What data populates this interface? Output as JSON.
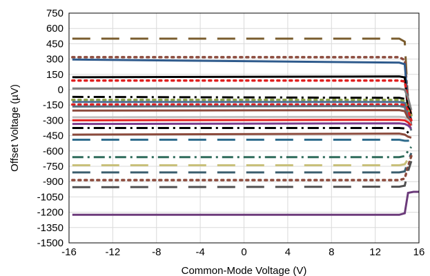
{
  "chart_data": {
    "type": "line",
    "title": "",
    "xlabel": "Common-Mode Voltage (V)",
    "ylabel": "Offset Voltage (µV)",
    "xlim": [
      -16,
      16
    ],
    "ylim": [
      -1500,
      750
    ],
    "x_ticks": [
      -16,
      -12,
      -8,
      -4,
      0,
      4,
      8,
      12,
      16
    ],
    "x_tick_labels": [
      "-16",
      "-12",
      "-8",
      "-4",
      "0",
      "4",
      "8",
      "12",
      "16"
    ],
    "y_ticks": [
      750,
      600,
      450,
      300,
      150,
      0,
      -150,
      -300,
      -450,
      -600,
      -750,
      -900,
      -1050,
      -1200,
      -1350,
      -1500
    ],
    "y_tick_labels": [
      "750",
      "600",
      "450",
      "300",
      "150",
      "0",
      "-150",
      "-300",
      "-450",
      "-600",
      "-750",
      "-900",
      "-1050",
      "-1200",
      "-1350",
      "-1500"
    ],
    "grid": true,
    "legend": "none",
    "series": [
      {
        "color": "#7a5c2e",
        "dash": "longdash",
        "values": [
          [
            -15.7,
            500
          ],
          [
            14.2,
            500
          ],
          [
            14.7,
            470
          ],
          [
            15.0,
            -120
          ],
          [
            15.3,
            -300
          ]
        ]
      },
      {
        "color": "#8b4a3c",
        "dash": "dot",
        "values": [
          [
            -15.7,
            318
          ],
          [
            14.2,
            318
          ],
          [
            14.7,
            290
          ],
          [
            15.0,
            -100
          ],
          [
            15.3,
            -250
          ]
        ]
      },
      {
        "color": "#2e5a8c",
        "dash": "solid",
        "values": [
          [
            -15.7,
            295
          ],
          [
            14.2,
            265
          ],
          [
            14.7,
            250
          ],
          [
            15.0,
            -150
          ],
          [
            15.3,
            -300
          ]
        ]
      },
      {
        "color": "#000000",
        "dash": "solid",
        "values": [
          [
            -15.7,
            122
          ],
          [
            14.2,
            130
          ],
          [
            14.7,
            120
          ],
          [
            15.0,
            -200
          ],
          [
            15.3,
            -350
          ]
        ]
      },
      {
        "color": "#e02020",
        "dash": "dot",
        "values": [
          [
            -15.7,
            90
          ],
          [
            14.2,
            90
          ],
          [
            14.7,
            80
          ],
          [
            15.0,
            -100
          ],
          [
            15.3,
            -250
          ]
        ]
      },
      {
        "color": "#7f7f7f",
        "dash": "solid",
        "values": [
          [
            -15.7,
            12
          ],
          [
            14.2,
            10
          ],
          [
            14.7,
            0
          ],
          [
            15.0,
            -80
          ],
          [
            15.3,
            -200
          ]
        ]
      },
      {
        "color": "#000000",
        "dash": "dashdot",
        "values": [
          [
            -15.7,
            -70
          ],
          [
            14.2,
            -80
          ],
          [
            14.7,
            -90
          ],
          [
            15.0,
            -150
          ],
          [
            15.3,
            -250
          ]
        ]
      },
      {
        "color": "#8fa34b",
        "dash": "dot",
        "values": [
          [
            -15.7,
            -100
          ],
          [
            14.2,
            -100
          ],
          [
            14.7,
            -110
          ],
          [
            15.0,
            -200
          ],
          [
            15.3,
            -250
          ]
        ]
      },
      {
        "color": "#4c6e94",
        "dash": "solid",
        "values": [
          [
            -15.7,
            -120
          ],
          [
            14.2,
            -120
          ],
          [
            14.7,
            -130
          ],
          [
            15.0,
            -250
          ],
          [
            15.3,
            -350
          ]
        ]
      },
      {
        "color": "#e02020",
        "dash": "dot",
        "values": [
          [
            -15.7,
            -145
          ],
          [
            14.2,
            -145
          ],
          [
            14.7,
            -150
          ],
          [
            15.0,
            -200
          ],
          [
            15.3,
            -300
          ]
        ]
      },
      {
        "color": "#5b6e7e",
        "dash": "solid",
        "values": [
          [
            -15.7,
            -165
          ],
          [
            14.2,
            -160
          ],
          [
            14.7,
            -170
          ],
          [
            15.0,
            -300
          ],
          [
            15.3,
            -400
          ]
        ]
      },
      {
        "color": "#8b4a3c",
        "dash": "solid",
        "values": [
          [
            -15.7,
            -205
          ],
          [
            14.2,
            -200
          ],
          [
            14.7,
            -210
          ],
          [
            15.0,
            -280
          ],
          [
            15.3,
            -350
          ]
        ]
      },
      {
        "color": "#c0c0c0",
        "dash": "solid",
        "values": [
          [
            -15.7,
            -270
          ],
          [
            14.2,
            -265
          ],
          [
            14.7,
            -270
          ],
          [
            15.0,
            -300
          ],
          [
            15.3,
            -350
          ]
        ]
      },
      {
        "color": "#e02020",
        "dash": "solid",
        "values": [
          [
            -15.7,
            -300
          ],
          [
            14.2,
            -295
          ],
          [
            14.7,
            -300
          ],
          [
            15.0,
            -320
          ],
          [
            15.3,
            -350
          ]
        ]
      },
      {
        "color": "#7a3b8c",
        "dash": "solid",
        "values": [
          [
            -15.7,
            -335
          ],
          [
            14.2,
            -330
          ],
          [
            14.7,
            -335
          ],
          [
            15.0,
            -350
          ],
          [
            15.3,
            -380
          ]
        ]
      },
      {
        "color": "#000000",
        "dash": "dashdot",
        "values": [
          [
            -15.7,
            -375
          ],
          [
            14.2,
            -375
          ],
          [
            14.7,
            -380
          ],
          [
            15.0,
            -420
          ],
          [
            15.3,
            -450
          ]
        ]
      },
      {
        "color": "#8b4a3c",
        "dash": "solid",
        "values": [
          [
            -15.7,
            -440
          ],
          [
            14.2,
            -430
          ],
          [
            14.7,
            -440
          ],
          [
            15.0,
            -460
          ],
          [
            15.3,
            -470
          ]
        ]
      },
      {
        "color": "#2e6b8c",
        "dash": "longdash",
        "values": [
          [
            -15.7,
            -490
          ],
          [
            14.2,
            -490
          ],
          [
            14.7,
            -500
          ],
          [
            15.0,
            -500
          ],
          [
            15.3,
            -480
          ]
        ]
      },
      {
        "color": "#2e6b5a",
        "dash": "dashdot",
        "values": [
          [
            -15.7,
            -660
          ],
          [
            14.2,
            -660
          ],
          [
            14.7,
            -650
          ],
          [
            15.0,
            -600
          ],
          [
            15.3,
            -560
          ]
        ]
      },
      {
        "color": "#c8c07a",
        "dash": "longdash",
        "values": [
          [
            -15.7,
            -740
          ],
          [
            14.2,
            -740
          ],
          [
            14.7,
            -730
          ],
          [
            15.0,
            -680
          ],
          [
            15.3,
            -640
          ]
        ]
      },
      {
        "color": "#3b5e6e",
        "dash": "longdash",
        "values": [
          [
            -15.7,
            -810
          ],
          [
            14.2,
            -810
          ],
          [
            14.7,
            -800
          ],
          [
            15.0,
            -700
          ],
          [
            15.3,
            -620
          ]
        ]
      },
      {
        "color": "#8b4a3c",
        "dash": "dot",
        "values": [
          [
            -15.7,
            -885
          ],
          [
            14.2,
            -885
          ],
          [
            14.7,
            -870
          ],
          [
            15.0,
            -750
          ],
          [
            15.3,
            -650
          ]
        ]
      },
      {
        "color": "#505050",
        "dash": "longdash",
        "values": [
          [
            -15.7,
            -955
          ],
          [
            14.2,
            -950
          ],
          [
            14.7,
            -940
          ],
          [
            15.0,
            -800
          ],
          [
            15.3,
            -700
          ]
        ]
      },
      {
        "color": "#6b3a7a",
        "dash": "solid",
        "values": [
          [
            -15.7,
            -1225
          ],
          [
            14.2,
            -1225
          ],
          [
            14.7,
            -1210
          ],
          [
            15.0,
            -1010
          ],
          [
            15.5,
            -1000
          ],
          [
            16,
            -1000
          ]
        ]
      }
    ]
  }
}
